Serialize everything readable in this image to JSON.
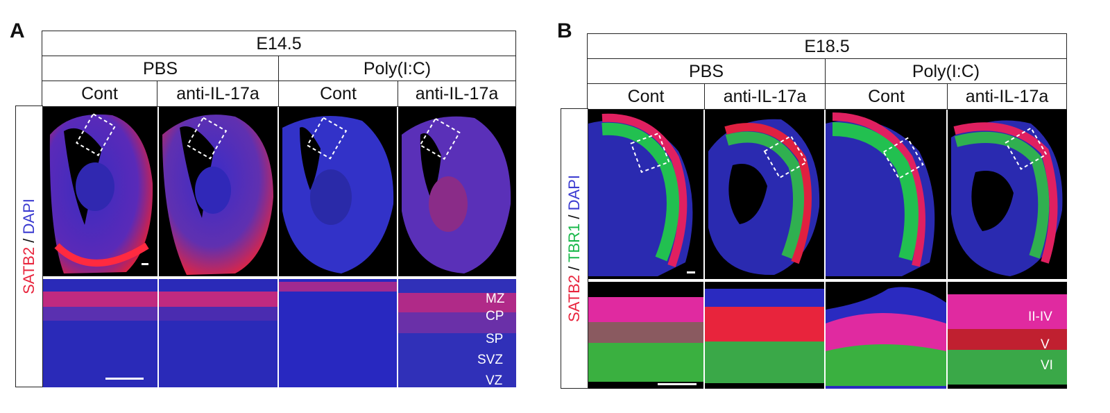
{
  "panels": {
    "a": {
      "letter": "A",
      "stage": "E14.5",
      "groups": [
        "PBS",
        "Poly(I:C)"
      ],
      "conditions": [
        "Cont",
        "anti-IL-17a",
        "Cont",
        "anti-IL-17a"
      ],
      "stain": {
        "part1": "SATB2",
        "sep1": " / ",
        "part2": "DAPI"
      },
      "layers": [
        "MZ",
        "CP",
        "SP",
        "SVZ",
        "VZ"
      ]
    },
    "b": {
      "letter": "B",
      "stage": "E18.5",
      "groups": [
        "PBS",
        "Poly(I:C)"
      ],
      "conditions": [
        "Cont",
        "anti-IL-17a",
        "Cont",
        "anti-IL-17a"
      ],
      "stain": {
        "part1": "SATB2",
        "sep1": " / ",
        "part2": "TBR1",
        "sep2": " / ",
        "part3": "DAPI"
      },
      "layers": [
        "II-IV",
        "V",
        "VI"
      ]
    }
  },
  "colors": {
    "satb2": "#e8243c",
    "tbr1": "#18b84a",
    "dapi": "#3a3ad0",
    "background": "#000000"
  }
}
